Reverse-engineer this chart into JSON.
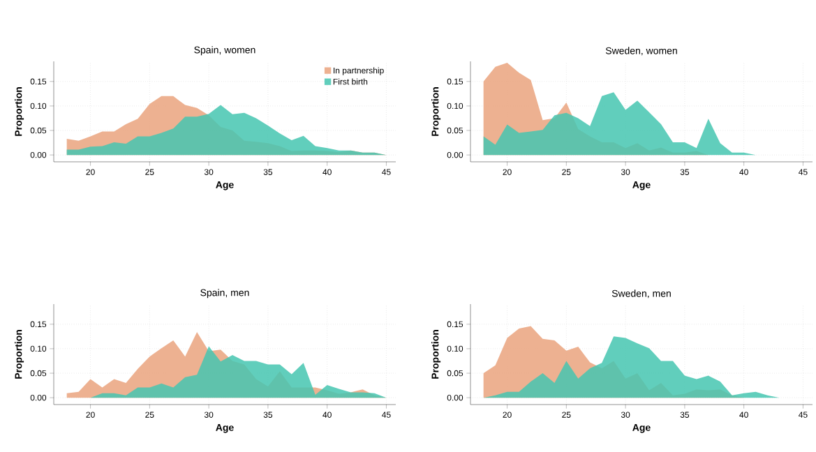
{
  "chart_data": [
    {
      "type": "area",
      "title": "Spain, women",
      "xlabel": "Age",
      "ylabel": "Proportion",
      "x": [
        18,
        19,
        20,
        21,
        22,
        23,
        24,
        25,
        26,
        27,
        28,
        29,
        30,
        31,
        32,
        33,
        34,
        35,
        36,
        37,
        38,
        39,
        40,
        41,
        42,
        43,
        44,
        45
      ],
      "xlim": [
        16.9,
        45.8
      ],
      "ylim": [
        -0.014,
        0.191
      ],
      "xticks": [
        20,
        25,
        30,
        35,
        40,
        45
      ],
      "yticks": [
        {
          "value": 0,
          "label": "0.00"
        },
        {
          "value": 0.05,
          "label": "0.05"
        },
        {
          "value": 0.1,
          "label": "0.10"
        },
        {
          "value": 0.15,
          "label": "0.15"
        }
      ],
      "grid": true,
      "legend": "top right",
      "series": [
        {
          "name": "In partnership",
          "color": "#eaa37e",
          "values": [
            0.033,
            0.029,
            0.038,
            0.048,
            0.048,
            0.063,
            0.074,
            0.104,
            0.12,
            0.12,
            0.102,
            0.096,
            0.081,
            0.057,
            0.05,
            0.029,
            0.027,
            0.024,
            0.018,
            0.008,
            0.009,
            0.009,
            0.008,
            0.006,
            0.009,
            0.005,
            0.005,
            0
          ]
        },
        {
          "name": "First birth",
          "color": "#45c5b0",
          "values": [
            0.011,
            0.011,
            0.017,
            0.018,
            0.026,
            0.023,
            0.038,
            0.038,
            0.045,
            0.054,
            0.078,
            0.078,
            0.084,
            0.102,
            0.083,
            0.086,
            0.075,
            0.06,
            0.044,
            0.03,
            0.039,
            0.018,
            0.014,
            0.009,
            0.009,
            0.005,
            0.005,
            0
          ]
        }
      ]
    },
    {
      "type": "area",
      "title": "Sweden, women",
      "xlabel": "Age",
      "ylabel": "Proportion",
      "x": [
        18,
        19,
        20,
        21,
        22,
        23,
        24,
        25,
        26,
        27,
        28,
        29,
        30,
        31,
        32,
        33,
        34,
        35,
        36,
        37,
        38,
        39,
        40,
        41,
        42,
        43,
        44,
        45
      ],
      "xlim": [
        16.9,
        45.8
      ],
      "ylim": [
        -0.014,
        0.191
      ],
      "xticks": [
        20,
        25,
        30,
        35,
        40,
        45
      ],
      "yticks": [
        {
          "value": 0,
          "label": "0.00"
        },
        {
          "value": 0.05,
          "label": "0.05"
        },
        {
          "value": 0.1,
          "label": "0.10"
        },
        {
          "value": 0.15,
          "label": "0.15"
        }
      ],
      "grid": true,
      "series": [
        {
          "color": "#eaa37e",
          "values": [
            0.15,
            0.18,
            0.188,
            0.168,
            0.153,
            0.071,
            0.075,
            0.107,
            0.053,
            0.038,
            0.026,
            0.026,
            0.014,
            0.024,
            0.009,
            0.015,
            0.005,
            0.005,
            0.008,
            0,
            0,
            0,
            0,
            0,
            0,
            0,
            0,
            0
          ]
        },
        {
          "color": "#45c5b0",
          "values": [
            0.038,
            0.021,
            0.062,
            0.045,
            0.048,
            0.051,
            0.081,
            0.086,
            0.075,
            0.059,
            0.12,
            0.128,
            0.092,
            0.111,
            0.087,
            0.063,
            0.026,
            0.026,
            0.014,
            0.074,
            0.024,
            0.005,
            0.005,
            0,
            0,
            0,
            0,
            0
          ]
        }
      ]
    },
    {
      "type": "area",
      "title": "Spain, men",
      "xlabel": "Age",
      "ylabel": "Proportion",
      "x": [
        18,
        19,
        20,
        21,
        22,
        23,
        24,
        25,
        26,
        27,
        28,
        29,
        30,
        31,
        32,
        33,
        34,
        35,
        36,
        37,
        38,
        39,
        40,
        41,
        42,
        43,
        44,
        45
      ],
      "xlim": [
        16.9,
        45.8
      ],
      "ylim": [
        -0.014,
        0.191
      ],
      "xticks": [
        20,
        25,
        30,
        35,
        40,
        45
      ],
      "yticks": [
        {
          "value": 0,
          "label": "0.00"
        },
        {
          "value": 0.05,
          "label": "0.05"
        },
        {
          "value": 0.1,
          "label": "0.10"
        },
        {
          "value": 0.15,
          "label": "0.15"
        }
      ],
      "grid": true,
      "series": [
        {
          "color": "#eaa37e",
          "values": [
            0.009,
            0.012,
            0.038,
            0.021,
            0.038,
            0.03,
            0.059,
            0.084,
            0.101,
            0.117,
            0.084,
            0.134,
            0.095,
            0.098,
            0.075,
            0.068,
            0.038,
            0.023,
            0.054,
            0.021,
            0.021,
            0.021,
            0.015,
            0.008,
            0.011,
            0.017,
            0.005,
            0
          ]
        },
        {
          "color": "#45c5b0",
          "values": [
            0,
            0,
            0,
            0.009,
            0.009,
            0.005,
            0.021,
            0.021,
            0.029,
            0.021,
            0.042,
            0.047,
            0.105,
            0.074,
            0.087,
            0.075,
            0.075,
            0.068,
            0.068,
            0.048,
            0.071,
            0.006,
            0.026,
            0.018,
            0.011,
            0.011,
            0.009,
            0
          ]
        }
      ]
    },
    {
      "type": "area",
      "title": "Sweden, men",
      "xlabel": "Age",
      "ylabel": "Proportion",
      "x": [
        18,
        19,
        20,
        21,
        22,
        23,
        24,
        25,
        26,
        27,
        28,
        29,
        30,
        31,
        32,
        33,
        34,
        35,
        36,
        37,
        38,
        39,
        40,
        41,
        42,
        43,
        44,
        45
      ],
      "xlim": [
        16.9,
        45.8
      ],
      "ylim": [
        -0.014,
        0.191
      ],
      "xticks": [
        20,
        25,
        30,
        35,
        40,
        45
      ],
      "yticks": [
        {
          "value": 0,
          "label": "0.00"
        },
        {
          "value": 0.05,
          "label": "0.05"
        },
        {
          "value": 0.1,
          "label": "0.10"
        },
        {
          "value": 0.15,
          "label": "0.15"
        }
      ],
      "grid": true,
      "series": [
        {
          "color": "#eaa37e",
          "values": [
            0.05,
            0.066,
            0.122,
            0.141,
            0.146,
            0.12,
            0.117,
            0.096,
            0.104,
            0.072,
            0.06,
            0.075,
            0.039,
            0.05,
            0.015,
            0.03,
            0.005,
            0.008,
            0.017,
            0.015,
            0.017,
            0.005,
            0,
            0,
            0,
            0,
            0,
            0
          ]
        },
        {
          "color": "#45c5b0",
          "values": [
            0,
            0.005,
            0.012,
            0.012,
            0.033,
            0.05,
            0.03,
            0.075,
            0.039,
            0.06,
            0.071,
            0.125,
            0.122,
            0.111,
            0.101,
            0.075,
            0.075,
            0.045,
            0.038,
            0.045,
            0.033,
            0.005,
            0.009,
            0.012,
            0.005,
            0,
            0,
            0
          ]
        }
      ]
    }
  ]
}
